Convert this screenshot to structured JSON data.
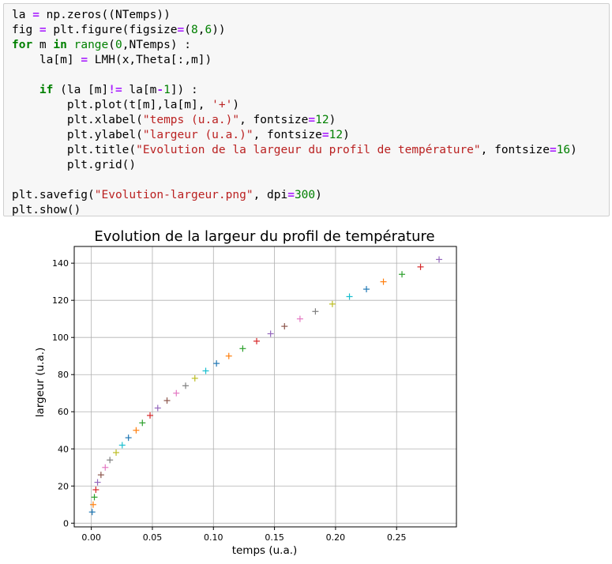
{
  "code": {
    "lines": [
      [
        {
          "t": "la "
        },
        {
          "t": "=",
          "c": "op"
        },
        {
          "t": " np.zeros((NTemps))"
        }
      ],
      [
        {
          "t": "fig "
        },
        {
          "t": "=",
          "c": "op"
        },
        {
          "t": " plt.figure(figsize"
        },
        {
          "t": "=",
          "c": "op"
        },
        {
          "t": "("
        },
        {
          "t": "8",
          "c": "num"
        },
        {
          "t": ","
        },
        {
          "t": "6",
          "c": "num"
        },
        {
          "t": "))"
        }
      ],
      [
        {
          "t": "for",
          "c": "kw"
        },
        {
          "t": " m "
        },
        {
          "t": "in",
          "c": "kw"
        },
        {
          "t": " "
        },
        {
          "t": "range",
          "c": "bi"
        },
        {
          "t": "("
        },
        {
          "t": "0",
          "c": "num"
        },
        {
          "t": ",NTemps) :"
        }
      ],
      [
        {
          "t": "    la[m] "
        },
        {
          "t": "=",
          "c": "op"
        },
        {
          "t": " LMH(x,Theta[:,m])"
        }
      ],
      [
        {
          "t": ""
        }
      ],
      [
        {
          "t": "    "
        },
        {
          "t": "if",
          "c": "kw"
        },
        {
          "t": " (la [m]"
        },
        {
          "t": "!=",
          "c": "op"
        },
        {
          "t": " la[m"
        },
        {
          "t": "-",
          "c": "op"
        },
        {
          "t": "1",
          "c": "num"
        },
        {
          "t": "]) :"
        }
      ],
      [
        {
          "t": "        plt.plot(t[m],la[m], "
        },
        {
          "t": "'+'",
          "c": "str"
        },
        {
          "t": ")"
        }
      ],
      [
        {
          "t": "        plt.xlabel("
        },
        {
          "t": "\"temps (u.a.)\"",
          "c": "str"
        },
        {
          "t": ", fontsize"
        },
        {
          "t": "=",
          "c": "op"
        },
        {
          "t": "12",
          "c": "num"
        },
        {
          "t": ")"
        }
      ],
      [
        {
          "t": "        plt.ylabel("
        },
        {
          "t": "\"largeur (u.a.)\"",
          "c": "str"
        },
        {
          "t": ", fontsize"
        },
        {
          "t": "=",
          "c": "op"
        },
        {
          "t": "12",
          "c": "num"
        },
        {
          "t": ")"
        }
      ],
      [
        {
          "t": "        plt.title("
        },
        {
          "t": "\"Evolution de la largeur du profil de température\"",
          "c": "str"
        },
        {
          "t": ", fontsize"
        },
        {
          "t": "=",
          "c": "op"
        },
        {
          "t": "16",
          "c": "num"
        },
        {
          "t": ")"
        }
      ],
      [
        {
          "t": "        plt.grid()"
        }
      ],
      [
        {
          "t": ""
        }
      ],
      [
        {
          "t": "plt.savefig("
        },
        {
          "t": "\"Evolution-largeur.png\"",
          "c": "str"
        },
        {
          "t": ", dpi"
        },
        {
          "t": "=",
          "c": "op"
        },
        {
          "t": "300",
          "c": "num"
        },
        {
          "t": ")"
        }
      ],
      [
        {
          "t": "plt.show()"
        }
      ]
    ]
  },
  "chart_data": {
    "type": "scatter",
    "title": "Evolution de la largeur du profil de température",
    "xlabel": "temps (u.a.)",
    "ylabel": "largeur (u.a.)",
    "xlim": [
      -0.014,
      0.299
    ],
    "ylim": [
      -2,
      149
    ],
    "xticks": [
      0.0,
      0.05,
      0.1,
      0.15,
      0.2,
      0.25
    ],
    "xtick_labels": [
      "0.00",
      "0.05",
      "0.10",
      "0.15",
      "0.20",
      "0.25"
    ],
    "yticks": [
      0,
      20,
      40,
      60,
      80,
      100,
      120,
      140
    ],
    "yticks_labels": [
      "0",
      "20",
      "40",
      "60",
      "80",
      "100",
      "120",
      "140"
    ],
    "grid": true,
    "marker": "+",
    "colors": [
      "#1f77b4",
      "#ff7f0e",
      "#2ca02c",
      "#d62728",
      "#9467bd",
      "#8c564b",
      "#e377c2",
      "#7f7f7f",
      "#bcbd22",
      "#17becf"
    ],
    "points": [
      {
        "x": 0.0007,
        "y": 6
      },
      {
        "x": 0.0015,
        "y": 10
      },
      {
        "x": 0.0025,
        "y": 14
      },
      {
        "x": 0.0037,
        "y": 18
      },
      {
        "x": 0.0051,
        "y": 22
      },
      {
        "x": 0.0079,
        "y": 26
      },
      {
        "x": 0.0114,
        "y": 30
      },
      {
        "x": 0.0152,
        "y": 34
      },
      {
        "x": 0.0203,
        "y": 38
      },
      {
        "x": 0.0253,
        "y": 42
      },
      {
        "x": 0.0304,
        "y": 46
      },
      {
        "x": 0.0367,
        "y": 50
      },
      {
        "x": 0.0418,
        "y": 54
      },
      {
        "x": 0.0481,
        "y": 58
      },
      {
        "x": 0.0544,
        "y": 62
      },
      {
        "x": 0.062,
        "y": 66
      },
      {
        "x": 0.0696,
        "y": 70
      },
      {
        "x": 0.0772,
        "y": 74
      },
      {
        "x": 0.0848,
        "y": 78
      },
      {
        "x": 0.0937,
        "y": 82
      },
      {
        "x": 0.1025,
        "y": 86
      },
      {
        "x": 0.1126,
        "y": 90
      },
      {
        "x": 0.124,
        "y": 94
      },
      {
        "x": 0.1354,
        "y": 98
      },
      {
        "x": 0.1468,
        "y": 102
      },
      {
        "x": 0.1582,
        "y": 106
      },
      {
        "x": 0.1709,
        "y": 110
      },
      {
        "x": 0.1835,
        "y": 114
      },
      {
        "x": 0.1974,
        "y": 118
      },
      {
        "x": 0.2114,
        "y": 122
      },
      {
        "x": 0.2253,
        "y": 126
      },
      {
        "x": 0.2392,
        "y": 130
      },
      {
        "x": 0.2544,
        "y": 134
      },
      {
        "x": 0.2696,
        "y": 138
      },
      {
        "x": 0.2848,
        "y": 142
      }
    ]
  }
}
